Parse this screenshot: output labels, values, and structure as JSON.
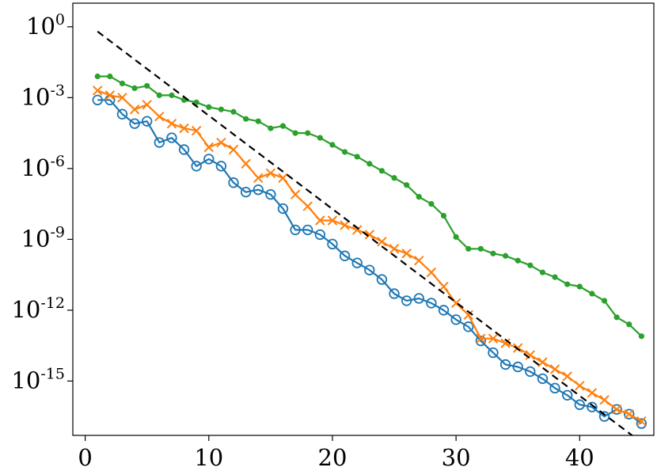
{
  "chart_data": {
    "type": "line",
    "title": "",
    "xlabel": "",
    "ylabel": "",
    "x_scale": "linear",
    "y_scale": "log",
    "xlim": [
      -1.0,
      46.0
    ],
    "ylim_log10": [
      -17.3,
      1.0
    ],
    "x_ticks": [
      0,
      10,
      20,
      30,
      40
    ],
    "x_tick_labels": [
      "0",
      "10",
      "20",
      "30",
      "40"
    ],
    "y_ticks_log10": [
      0,
      -3,
      -6,
      -9,
      -12,
      -15
    ],
    "y_tick_labels": [
      {
        "base": "10",
        "exp": "0"
      },
      {
        "base": "10",
        "exp": "-3"
      },
      {
        "base": "10",
        "exp": "-6"
      },
      {
        "base": "10",
        "exp": "-9"
      },
      {
        "base": "10",
        "exp": "-12"
      },
      {
        "base": "10",
        "exp": "-15"
      }
    ],
    "grid": false,
    "legend": "none",
    "series": [
      {
        "color": "#1f77b4",
        "marker": "circle-open",
        "x": [
          1,
          2,
          3,
          4,
          5,
          6,
          7,
          8,
          9,
          10,
          11,
          12,
          13,
          14,
          15,
          16,
          17,
          18,
          19,
          20,
          21,
          22,
          23,
          24,
          25,
          26,
          27,
          28,
          29,
          30,
          31,
          32,
          33,
          34,
          35,
          36,
          37,
          38,
          39,
          40,
          41,
          42,
          43,
          44,
          45
        ],
        "y_log10": [
          -3.1,
          -3.1,
          -3.7,
          -4.1,
          -4.0,
          -4.9,
          -4.7,
          -5.2,
          -5.9,
          -5.6,
          -5.9,
          -6.6,
          -7.0,
          -6.9,
          -7.1,
          -7.7,
          -8.6,
          -8.6,
          -8.8,
          -9.2,
          -9.7,
          -10.0,
          -10.3,
          -10.7,
          -11.3,
          -11.6,
          -11.5,
          -11.7,
          -12.0,
          -12.4,
          -12.7,
          -13.3,
          -13.8,
          -14.3,
          -14.4,
          -14.6,
          -14.9,
          -15.3,
          -15.6,
          -16.0,
          -16.1,
          -16.5,
          -16.2,
          -16.4,
          -16.8
        ]
      },
      {
        "color": "#ff7f0e",
        "marker": "x",
        "x": [
          1,
          2,
          3,
          4,
          5,
          6,
          7,
          8,
          9,
          10,
          11,
          12,
          13,
          14,
          15,
          16,
          17,
          18,
          19,
          20,
          21,
          22,
          23,
          24,
          25,
          26,
          27,
          28,
          29,
          30,
          31,
          32,
          33,
          34,
          35,
          36,
          37,
          38,
          39,
          40,
          41,
          42,
          43,
          44,
          45
        ],
        "y_log10": [
          -2.7,
          -2.9,
          -3.0,
          -3.5,
          -3.3,
          -3.8,
          -4.1,
          -4.3,
          -4.4,
          -5.1,
          -4.9,
          -5.2,
          -5.8,
          -6.4,
          -6.2,
          -6.4,
          -7.1,
          -7.6,
          -8.2,
          -8.2,
          -8.4,
          -8.6,
          -8.8,
          -9.1,
          -9.4,
          -9.6,
          -9.9,
          -10.4,
          -11.0,
          -11.7,
          -12.2,
          -13.2,
          -13.2,
          -13.4,
          -13.6,
          -13.9,
          -14.2,
          -14.5,
          -14.8,
          -15.2,
          -15.5,
          -15.8,
          -16.2,
          -16.4,
          -16.7
        ]
      },
      {
        "color": "#2ca02c",
        "marker": "dot",
        "x": [
          1,
          2,
          3,
          4,
          5,
          6,
          7,
          8,
          9,
          10,
          11,
          12,
          13,
          14,
          15,
          16,
          17,
          18,
          19,
          20,
          21,
          22,
          23,
          24,
          25,
          26,
          27,
          28,
          29,
          30,
          31,
          32,
          33,
          34,
          35,
          36,
          37,
          38,
          39,
          40,
          41,
          42,
          43,
          44,
          45
        ],
        "y_log10": [
          -2.1,
          -2.1,
          -2.4,
          -2.6,
          -2.5,
          -2.9,
          -2.9,
          -3.1,
          -3.2,
          -3.4,
          -3.5,
          -3.6,
          -3.9,
          -4.0,
          -4.3,
          -4.2,
          -4.5,
          -4.5,
          -4.7,
          -5.0,
          -5.3,
          -5.5,
          -5.8,
          -6.1,
          -6.4,
          -6.7,
          -7.2,
          -7.5,
          -8.0,
          -8.9,
          -9.4,
          -9.4,
          -9.6,
          -9.7,
          -9.9,
          -10.1,
          -10.4,
          -10.6,
          -10.9,
          -11.0,
          -11.3,
          -11.6,
          -12.3,
          -12.6,
          -13.1
        ]
      },
      {
        "color": "#000000",
        "line_style": "dashed",
        "x": [
          1,
          45
        ],
        "y_log10": [
          -0.2,
          -17.6
        ]
      }
    ]
  }
}
